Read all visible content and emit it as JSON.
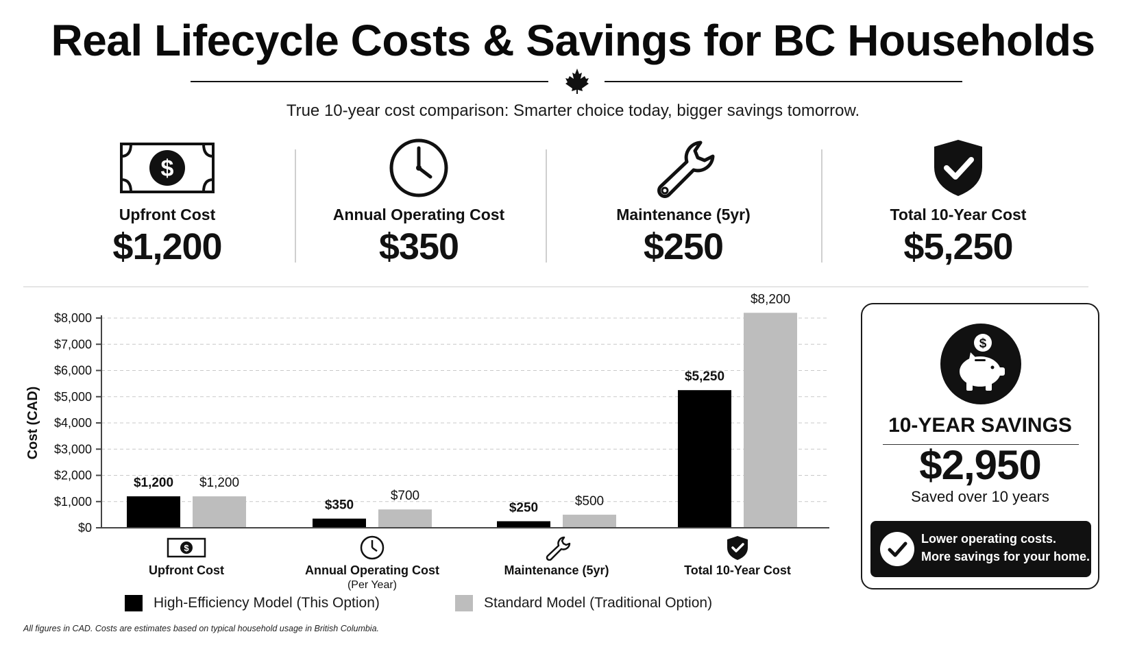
{
  "header": {
    "title": "Real Lifecycle Costs & Savings for BC Households",
    "subtitle": "True 10-year cost comparison: Smarter choice today, bigger savings tomorrow."
  },
  "kpis": [
    {
      "icon": "banknote-dollar-icon",
      "label": "Upfront Cost",
      "value": "$1,200"
    },
    {
      "icon": "clock-icon",
      "label": "Annual Operating Cost",
      "value": "$350"
    },
    {
      "icon": "wrench-icon",
      "label": "Maintenance (5yr)",
      "value": "$250"
    },
    {
      "icon": "shield-check-icon",
      "label": "Total 10-Year Cost",
      "value": "$5,250"
    }
  ],
  "chart_data": {
    "type": "bar",
    "ylabel": "Cost (CAD)",
    "xlabel": "",
    "ylim": [
      0,
      8000
    ],
    "yticks": [
      0,
      1000,
      2000,
      3000,
      4000,
      5000,
      6000,
      7000,
      8000
    ],
    "ytick_labels": [
      "$0",
      "$1,000",
      "$2,000",
      "$3,000",
      "$4,000",
      "$5,000",
      "$6,000",
      "$7,000",
      "$8,000"
    ],
    "grid": true,
    "legend_position": "bottom",
    "categories": [
      "Upfront Cost",
      "Annual Operating Cost",
      "Maintenance (5yr)",
      "Total 10-Year Cost"
    ],
    "category_sublabels": [
      "",
      "(Per Year)",
      "",
      ""
    ],
    "category_icons": [
      "banknote-dollar-icon",
      "clock-icon",
      "wrench-icon",
      "shield-check-icon"
    ],
    "series": [
      {
        "name": "High-Efficiency Model (This Option)",
        "color": "#000000",
        "values": [
          1200,
          350,
          250,
          5250
        ],
        "labels": [
          "$1,200",
          "$350",
          "$250",
          "$5,250"
        ]
      },
      {
        "name": "Standard Model (Traditional Option)",
        "color": "#bdbdbd",
        "values": [
          1200,
          700,
          500,
          8200
        ],
        "labels": [
          "$1,200",
          "$700",
          "$500",
          "$8,200"
        ]
      }
    ]
  },
  "savings_card": {
    "icon": "piggy-bank-dollar-icon",
    "title": "10-YEAR SAVINGS",
    "value": "$2,950",
    "note": "Saved over 10 years",
    "banner_icon": "check-circle-icon",
    "banner_line1": "Lower operating costs.",
    "banner_line2": "More savings for your home."
  },
  "footnote": "All figures in CAD. Costs are estimates based on typical household usage in British Columbia."
}
